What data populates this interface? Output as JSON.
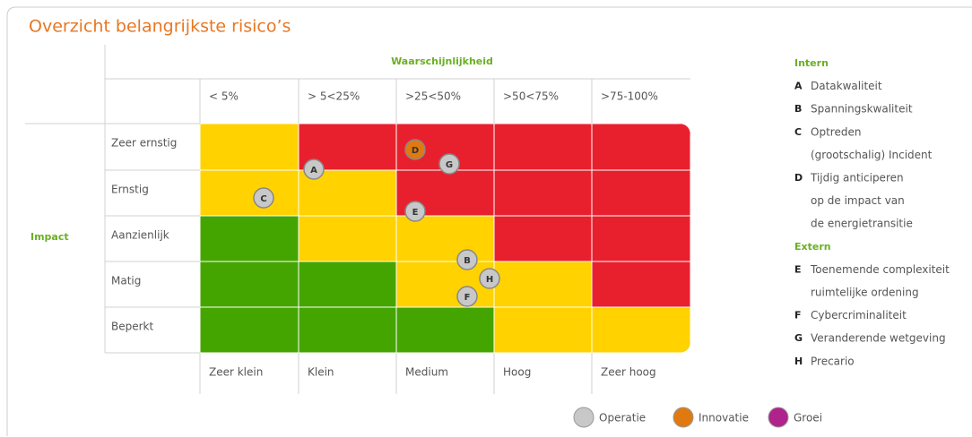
{
  "title": "Overzicht belangrijkste risico’s",
  "likelihood_label": "Waarschijnlijkheid",
  "impact_label": "Impact",
  "columns": [
    "< 5%",
    "> 5<25%",
    ">25<50%",
    ">50<75%",
    ">75-100%"
  ],
  "column_names": [
    "Zeer klein",
    "Klein",
    "Medium",
    "Hoog",
    "Zeer hoog"
  ],
  "rows": [
    "Zeer ernstig",
    "Ernstig",
    "Aanzienlijk",
    "Matig",
    "Beperkt"
  ],
  "markers": [
    {
      "label": "A",
      "group": "Operatie"
    },
    {
      "label": "C",
      "group": "Operatie"
    },
    {
      "label": "D",
      "group": "Innovatie"
    },
    {
      "label": "G",
      "group": "Operatie"
    },
    {
      "label": "E",
      "group": "Operatie"
    },
    {
      "label": "B",
      "group": "Operatie"
    },
    {
      "label": "H",
      "group": "Operatie"
    },
    {
      "label": "F",
      "group": "Operatie"
    }
  ],
  "risk_groups": [
    {
      "title": "Intern",
      "items": [
        {
          "letter": "A",
          "lines": [
            "Datakwaliteit"
          ]
        },
        {
          "letter": "B",
          "lines": [
            "Spanningskwaliteit"
          ]
        },
        {
          "letter": "C",
          "lines": [
            "Optreden",
            "(grootschalig) Incident"
          ]
        },
        {
          "letter": "D",
          "lines": [
            "Tijdig anticiperen",
            "op de impact van",
            "de energietransitie"
          ]
        }
      ]
    },
    {
      "title": "Extern",
      "items": [
        {
          "letter": "E",
          "lines": [
            "Toenemende complexiteit",
            "ruimtelijke ordening"
          ]
        },
        {
          "letter": "F",
          "lines": [
            "Cybercriminaliteit"
          ]
        },
        {
          "letter": "G",
          "lines": [
            "Veranderende wetgeving"
          ]
        },
        {
          "letter": "H",
          "lines": [
            "Precario"
          ]
        }
      ]
    }
  ],
  "legend": [
    "Operatie",
    "Innovatie",
    "Groei"
  ]
}
